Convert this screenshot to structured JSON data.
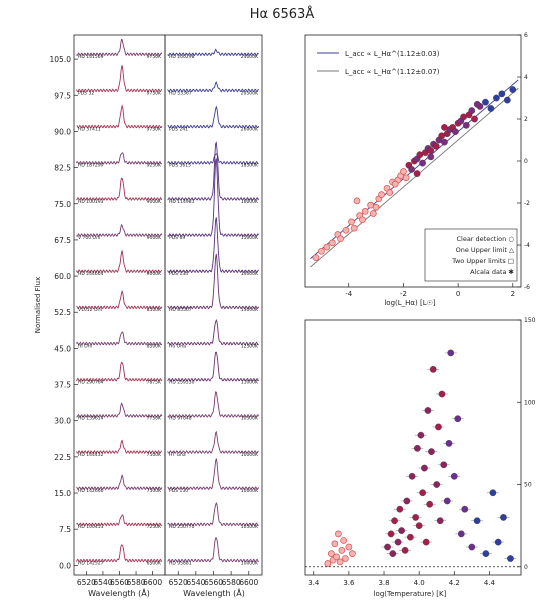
{
  "title": "Hα 6563Å",
  "chart_data": [
    {
      "type": "line",
      "panel": "spectra-left",
      "ylabel": "Normalised Flux",
      "xlabel": "Wavelength (Å)",
      "xlim": [
        6505,
        6615
      ],
      "xticks": [
        6520,
        6540,
        6560,
        6580,
        6600
      ],
      "ylim": [
        -2,
        110
      ],
      "yticks": [
        "0.0",
        "7.5",
        "15.0",
        "22.5",
        "30.0",
        "37.5",
        "45.0",
        "52.5",
        "60.0",
        "67.5",
        "75.0",
        "82.5",
        "90.0",
        "97.5",
        "105.0"
      ],
      "series": [
        {
          "star": "HD 141569",
          "teff": "9750K",
          "offset": 105.0,
          "peak": 3.0,
          "color": "#7a3b6e"
        },
        {
          "star": "PDS 32",
          "teff": "9750K",
          "offset": 97.5,
          "peak": 5.0,
          "color": "#a33355"
        },
        {
          "star": "HD 37411",
          "teff": "9750K",
          "offset": 90.0,
          "peak": 4.2,
          "color": "#a33355"
        },
        {
          "star": "HD 187299",
          "teff": "9250K",
          "offset": 82.5,
          "peak": 2.2,
          "color": "#7a3b6e"
        },
        {
          "star": "HD 100193",
          "teff": "9000K",
          "offset": 75.0,
          "peak": 4.5,
          "color": "#a33355"
        },
        {
          "star": "V 700 Oril",
          "teff": "9000K",
          "offset": 67.5,
          "peak": 2.0,
          "color": "#7a3b6e"
        },
        {
          "star": "HD 244604",
          "teff": "9000K",
          "offset": 60.0,
          "peak": 4.0,
          "color": "#a33355"
        },
        {
          "star": "V1012 Oril",
          "teff": "8500K",
          "offset": 52.5,
          "peak": 3.2,
          "color": "#a33355"
        },
        {
          "star": "HI Oril",
          "teff": "8500K",
          "offset": 45.0,
          "peak": 2.5,
          "color": "#7a3b6e"
        },
        {
          "star": "HD 290764",
          "teff": "7875K",
          "offset": 37.5,
          "peak": 3.8,
          "color": "#a33355"
        },
        {
          "star": "HD 139614",
          "teff": "7750K",
          "offset": 30.0,
          "peak": 2.5,
          "color": "#7a3b6e"
        },
        {
          "star": "HD 144432",
          "teff": "7500K",
          "offset": 22.5,
          "peak": 2.2,
          "color": "#a33355"
        },
        {
          "star": "HD 142666",
          "teff": "7500K",
          "offset": 15.0,
          "peak": 2.5,
          "color": "#7a3b6e"
        },
        {
          "star": "HD 100453",
          "teff": "7250K",
          "offset": 7.5,
          "peak": 2.0,
          "color": "#a33355"
        },
        {
          "star": "HD 142527",
          "teff": "6500K",
          "offset": 0.0,
          "peak": 3.5,
          "color": "#a33355"
        }
      ]
    },
    {
      "type": "line",
      "panel": "spectra-right",
      "xlabel": "Wavelength (Å)",
      "xlim": [
        6505,
        6615
      ],
      "xticks": [
        6520,
        6540,
        6560,
        6580,
        6600
      ],
      "ylim": [
        -2,
        110
      ],
      "series": [
        {
          "star": "HD 200298",
          "teff": "24000K",
          "offset": 105.0,
          "peak": 0.8,
          "color": "#3b3b8f"
        },
        {
          "star": "HD 53367",
          "teff": "29500K",
          "offset": 97.5,
          "peak": 1.5,
          "color": "#3b3b8f"
        },
        {
          "star": "PDS 241",
          "teff": "26000K",
          "offset": 90.0,
          "peak": 4.0,
          "color": "#3b3b8f"
        },
        {
          "star": "PDS 3615",
          "teff": "18500K",
          "offset": 82.5,
          "peak": 2.0,
          "color": "#4a3a8f"
        },
        {
          "star": "HD 114981",
          "teff": "16000K",
          "offset": 75.0,
          "peak": 12.0,
          "color": "#5a3080"
        },
        {
          "star": "PDS 69",
          "teff": "15000K",
          "offset": 67.5,
          "peak": 16.0,
          "color": "#5a3080"
        },
        {
          "star": "PDS 134",
          "teff": "14000K",
          "offset": 60.0,
          "peak": 11.0,
          "color": "#5a3080"
        },
        {
          "star": "HD 85567",
          "teff": "13000K",
          "offset": 52.5,
          "peak": 11.0,
          "color": "#6a2f70"
        },
        {
          "star": "Hu Oria",
          "teff": "12500K",
          "offset": 45.0,
          "peak": 5.0,
          "color": "#6a2f70"
        },
        {
          "star": "HD 259550",
          "teff": "11000K",
          "offset": 37.5,
          "peak": 6.0,
          "color": "#6a2f70"
        },
        {
          "star": "HD 97048",
          "teff": "10500K",
          "offset": 30.0,
          "peak": 5.0,
          "color": "#7a3b6e"
        },
        {
          "star": "HT Gha",
          "teff": "10000K",
          "offset": 22.5,
          "peak": 4.0,
          "color": "#7a3b6e"
        },
        {
          "star": "PDS 130",
          "teff": "10000K",
          "offset": 15.0,
          "peak": 6.0,
          "color": "#7a3b6e"
        },
        {
          "star": "HD 250770",
          "teff": "10500K",
          "offset": 7.5,
          "peak": 4.5,
          "color": "#7a3b6e"
        },
        {
          "star": "HD 95881",
          "teff": "10000K",
          "offset": 0.0,
          "peak": 5.0,
          "color": "#7a3b6e"
        }
      ]
    },
    {
      "type": "scatter",
      "panel": "luminosity",
      "xlabel": "log(L_Hα) [L☉]",
      "xlim": [
        -5.6,
        2.3
      ],
      "xticks": [
        -4,
        -2,
        0,
        2
      ],
      "ylim": [
        -6,
        6
      ],
      "yticks_right": [
        -6,
        -4,
        -2,
        0,
        2,
        4,
        6
      ],
      "fits": [
        {
          "label": "L_acc ∝ L_Hα^(1.12±0.03)",
          "slope": 1.12,
          "intercept": 1.4,
          "color": "#3b3b8f"
        },
        {
          "label": "L_acc ∝ L_Hα^(1.12±0.07)",
          "slope": 1.12,
          "intercept": 1.0,
          "color": "#777777"
        }
      ],
      "legend": [
        "Clear detection ○",
        "One Upper limit △",
        "Two Upper limits □",
        "Alcala data ✱"
      ],
      "legend_position": "bottom-right",
      "points": [
        [
          -5.2,
          -4.6
        ],
        [
          -5.0,
          -4.3
        ],
        [
          -4.8,
          -4.1
        ],
        [
          -4.6,
          -3.9
        ],
        [
          -4.4,
          -3.5
        ],
        [
          -4.3,
          -3.7
        ],
        [
          -4.1,
          -3.3
        ],
        [
          -3.9,
          -2.9
        ],
        [
          -3.8,
          -3.2
        ],
        [
          -3.6,
          -2.6
        ],
        [
          -3.5,
          -2.8
        ],
        [
          -3.4,
          -2.4
        ],
        [
          -3.2,
          -2.1
        ],
        [
          -3.0,
          -2.2
        ],
        [
          -2.9,
          -1.8
        ],
        [
          -2.8,
          -1.6
        ],
        [
          -2.6,
          -1.3
        ],
        [
          -2.5,
          -1.5
        ],
        [
          -2.4,
          -1.0
        ],
        [
          -2.2,
          -0.9
        ],
        [
          -2.1,
          -0.7
        ],
        [
          -2.0,
          -0.5
        ],
        [
          -1.9,
          -0.8
        ],
        [
          -1.8,
          -0.2
        ],
        [
          -1.7,
          -0.4
        ],
        [
          -1.6,
          0.0
        ],
        [
          -1.5,
          0.1
        ],
        [
          -1.4,
          0.3
        ],
        [
          -1.3,
          -0.1
        ],
        [
          -1.2,
          0.4
        ],
        [
          -1.1,
          0.6
        ],
        [
          -1.0,
          0.5
        ],
        [
          -0.9,
          0.8
        ],
        [
          -0.8,
          0.7
        ],
        [
          -0.7,
          1.0
        ],
        [
          -0.6,
          1.2
        ],
        [
          -0.5,
          0.9
        ],
        [
          -0.4,
          1.3
        ],
        [
          -0.3,
          1.5
        ],
        [
          -0.2,
          1.6
        ],
        [
          -0.1,
          1.4
        ],
        [
          0.0,
          1.8
        ],
        [
          0.1,
          1.9
        ],
        [
          0.2,
          2.1
        ],
        [
          0.3,
          1.7
        ],
        [
          0.4,
          2.2
        ],
        [
          0.5,
          2.4
        ],
        [
          0.6,
          2.0
        ],
        [
          0.8,
          2.6
        ],
        [
          1.0,
          2.8
        ],
        [
          1.2,
          2.5
        ],
        [
          1.4,
          3.0
        ],
        [
          1.6,
          3.2
        ],
        [
          1.8,
          2.9
        ],
        [
          2.0,
          3.4
        ],
        [
          -1.5,
          -0.6
        ],
        [
          -2.3,
          -1.1
        ],
        [
          -3.1,
          -2.5
        ],
        [
          -1.0,
          0.2
        ],
        [
          -0.5,
          1.6
        ],
        [
          0.7,
          2.7
        ],
        [
          -3.7,
          -1.9
        ]
      ]
    },
    {
      "type": "scatter",
      "panel": "temperature",
      "xlabel": "log(Temperature) [K]",
      "xlim": [
        3.35,
        4.58
      ],
      "xticks": [
        3.4,
        3.6,
        3.8,
        4.0,
        4.2,
        4.4
      ],
      "ylim": [
        -5,
        150
      ],
      "yticks_right": [
        0,
        50,
        100,
        150
      ],
      "points": [
        [
          3.48,
          2
        ],
        [
          3.5,
          8
        ],
        [
          3.51,
          4
        ],
        [
          3.52,
          14
        ],
        [
          3.53,
          6
        ],
        [
          3.54,
          20
        ],
        [
          3.55,
          3
        ],
        [
          3.56,
          10
        ],
        [
          3.57,
          16
        ],
        [
          3.58,
          5
        ],
        [
          3.6,
          12
        ],
        [
          3.62,
          8
        ],
        [
          3.82,
          12
        ],
        [
          3.84,
          20
        ],
        [
          3.85,
          8
        ],
        [
          3.86,
          28
        ],
        [
          3.88,
          15
        ],
        [
          3.89,
          35
        ],
        [
          3.9,
          22
        ],
        [
          3.92,
          10
        ],
        [
          3.93,
          40
        ],
        [
          3.95,
          18
        ],
        [
          3.96,
          55
        ],
        [
          3.98,
          30
        ],
        [
          3.99,
          72
        ],
        [
          4.0,
          25
        ],
        [
          4.01,
          80
        ],
        [
          4.02,
          45
        ],
        [
          4.03,
          60
        ],
        [
          4.04,
          15
        ],
        [
          4.05,
          95
        ],
        [
          4.06,
          38
        ],
        [
          4.07,
          70
        ],
        [
          4.08,
          120
        ],
        [
          4.1,
          50
        ],
        [
          4.11,
          85
        ],
        [
          4.12,
          28
        ],
        [
          4.13,
          105
        ],
        [
          4.14,
          62
        ],
        [
          4.16,
          40
        ],
        [
          4.17,
          75
        ],
        [
          4.18,
          130
        ],
        [
          4.2,
          55
        ],
        [
          4.22,
          90
        ],
        [
          4.24,
          20
        ],
        [
          4.26,
          35
        ],
        [
          4.3,
          12
        ],
        [
          4.33,
          28
        ],
        [
          4.38,
          8
        ],
        [
          4.42,
          45
        ],
        [
          4.45,
          15
        ],
        [
          4.48,
          30
        ],
        [
          4.52,
          5
        ]
      ]
    }
  ]
}
